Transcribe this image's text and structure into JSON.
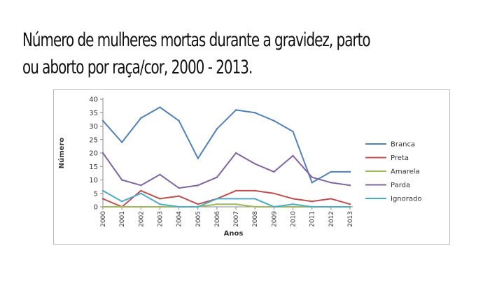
{
  "slide": {
    "title_line1": "Número de mulheres mortas durante a gravidez, parto",
    "title_line2": "ou aborto por raça/cor, 2000 - 2013."
  },
  "chart_data": {
    "type": "line",
    "title": "",
    "xlabel": "Anos",
    "ylabel": "Número",
    "ylim": [
      0,
      40
    ],
    "yticks": [
      0,
      5,
      10,
      15,
      20,
      25,
      30,
      35,
      40
    ],
    "categories": [
      "2000",
      "2001",
      "2002",
      "2003",
      "2004",
      "2005",
      "2006",
      "2007",
      "2008",
      "2009",
      "2010",
      "2011",
      "2012",
      "2013"
    ],
    "legend_position": "right",
    "grid": false,
    "series": [
      {
        "name": "Branca",
        "color": "#4f81bd",
        "values": [
          32,
          24,
          33,
          37,
          32,
          18,
          29,
          36,
          35,
          32,
          28,
          9,
          13,
          13
        ]
      },
      {
        "name": "Preta",
        "color": "#c0504d",
        "values": [
          3,
          0,
          6,
          3,
          4,
          1,
          3,
          6,
          6,
          5,
          3,
          2,
          3,
          1
        ]
      },
      {
        "name": "Amarela",
        "color": "#9bbb59",
        "values": [
          0,
          0,
          0,
          0,
          0,
          0,
          1,
          1,
          0,
          0,
          0,
          0,
          0,
          0
        ]
      },
      {
        "name": "Parda",
        "color": "#8064a2",
        "values": [
          20,
          10,
          8,
          12,
          7,
          8,
          11,
          20,
          16,
          13,
          19,
          11,
          9,
          8
        ]
      },
      {
        "name": "Ignorado",
        "color": "#4bacc6",
        "values": [
          6,
          2,
          5,
          1,
          0,
          0,
          3,
          3,
          3,
          0,
          1,
          0,
          0,
          0
        ]
      }
    ]
  }
}
